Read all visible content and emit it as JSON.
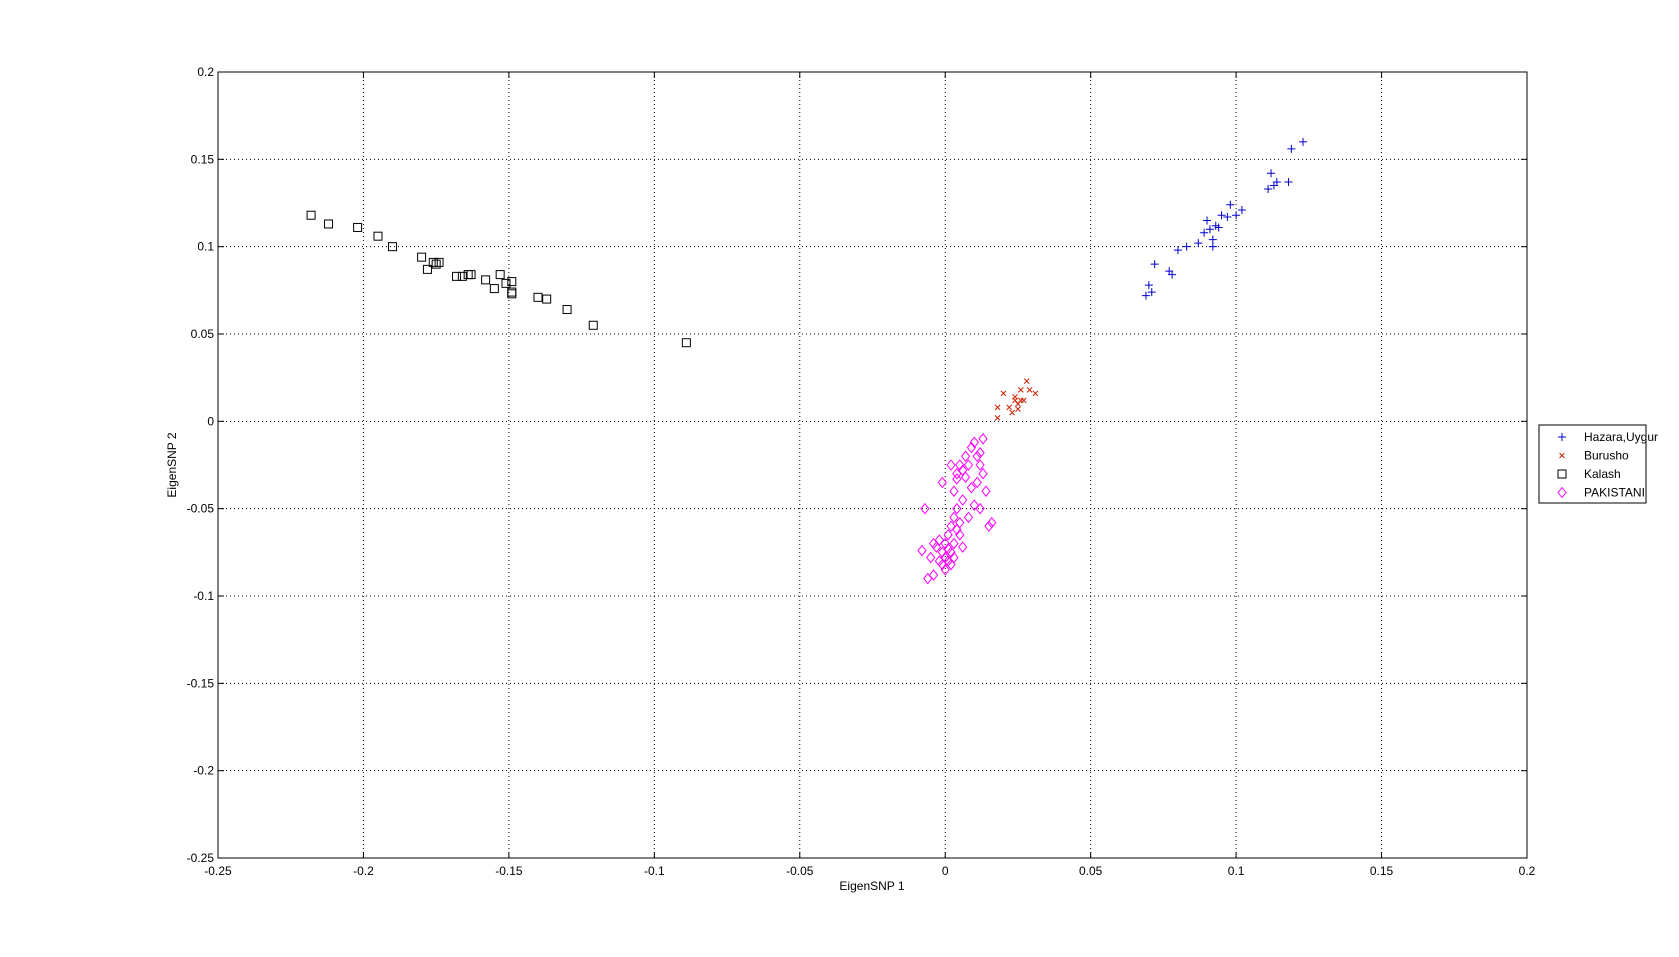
{
  "chart_data": {
    "type": "scatter",
    "title": "",
    "xlabel": "EigenSNP 1",
    "ylabel": "EigenSNP 2",
    "xlim": [
      -0.25,
      0.2
    ],
    "ylim": [
      -0.25,
      0.2
    ],
    "xticks": [
      -0.25,
      -0.2,
      -0.15,
      -0.1,
      -0.05,
      0,
      0.05,
      0.1,
      0.15,
      0.2
    ],
    "xtick_labels": [
      "-0.25",
      "-0.2",
      "-0.15",
      "-0.1",
      "-0.05",
      "0",
      "0.05",
      "0.1",
      "0.15",
      "0.2"
    ],
    "yticks": [
      -0.25,
      -0.2,
      -0.15,
      -0.1,
      -0.05,
      0,
      0.05,
      0.1,
      0.15,
      0.2
    ],
    "ytick_labels": [
      "-0.25",
      "-0.2",
      "-0.15",
      "-0.1",
      "-0.05",
      "0",
      "0.05",
      "0.1",
      "0.15",
      "0.2"
    ],
    "grid": true,
    "legend_position": "right",
    "series": [
      {
        "name": "Hazara,Uygur",
        "marker": "plus",
        "color": "#0000cc",
        "x": [
          0.069,
          0.07,
          0.071,
          0.072,
          0.077,
          0.078,
          0.08,
          0.083,
          0.087,
          0.089,
          0.09,
          0.091,
          0.092,
          0.092,
          0.093,
          0.094,
          0.095,
          0.097,
          0.098,
          0.1,
          0.102,
          0.111,
          0.112,
          0.113,
          0.114,
          0.118,
          0.119,
          0.123
        ],
        "y": [
          0.072,
          0.078,
          0.074,
          0.09,
          0.086,
          0.084,
          0.098,
          0.1,
          0.102,
          0.108,
          0.115,
          0.11,
          0.104,
          0.1,
          0.112,
          0.111,
          0.118,
          0.117,
          0.124,
          0.118,
          0.121,
          0.133,
          0.142,
          0.135,
          0.137,
          0.137,
          0.156,
          0.16
        ]
      },
      {
        "name": "Burusho",
        "marker": "x",
        "color": "#cc2200",
        "x": [
          0.018,
          0.018,
          0.02,
          0.022,
          0.023,
          0.024,
          0.024,
          0.025,
          0.025,
          0.026,
          0.026,
          0.027,
          0.028,
          0.029,
          0.031
        ],
        "y": [
          0.002,
          0.008,
          0.016,
          0.008,
          0.005,
          0.012,
          0.014,
          0.007,
          0.01,
          0.012,
          0.018,
          0.012,
          0.023,
          0.018,
          0.016
        ]
      },
      {
        "name": "Kalash",
        "marker": "square",
        "color": "#000000",
        "x": [
          -0.218,
          -0.212,
          -0.202,
          -0.195,
          -0.19,
          -0.18,
          -0.178,
          -0.176,
          -0.175,
          -0.174,
          -0.168,
          -0.166,
          -0.164,
          -0.163,
          -0.158,
          -0.155,
          -0.153,
          -0.151,
          -0.149,
          -0.149,
          -0.149,
          -0.14,
          -0.137,
          -0.13,
          -0.121,
          -0.089
        ],
        "y": [
          0.118,
          0.113,
          0.111,
          0.106,
          0.1,
          0.094,
          0.087,
          0.091,
          0.09,
          0.091,
          0.083,
          0.083,
          0.084,
          0.084,
          0.081,
          0.076,
          0.084,
          0.079,
          0.08,
          0.074,
          0.073,
          0.071,
          0.07,
          0.064,
          0.055,
          0.045
        ]
      },
      {
        "name": "PAKISTANI",
        "marker": "diamond",
        "color": "#ff00ff",
        "x": [
          -0.006,
          -0.005,
          -0.004,
          -0.003,
          -0.002,
          -0.002,
          -0.001,
          -0.001,
          0.0,
          0.0,
          0.0,
          0.001,
          0.001,
          0.001,
          0.002,
          0.002,
          0.002,
          0.003,
          0.003,
          0.003,
          0.004,
          0.004,
          0.004,
          0.005,
          0.005,
          0.006,
          0.006,
          0.007,
          0.007,
          0.008,
          0.008,
          0.009,
          0.009,
          0.01,
          0.01,
          0.011,
          0.011,
          0.012,
          0.012,
          0.012,
          0.013,
          0.013,
          0.014,
          0.015,
          0.016,
          -0.008,
          -0.007,
          -0.004,
          -0.001,
          0.003,
          0.005,
          0.002,
          0.0,
          0.004,
          0.006
        ],
        "y": [
          -0.09,
          -0.078,
          -0.088,
          -0.072,
          -0.068,
          -0.08,
          -0.075,
          -0.082,
          -0.07,
          -0.078,
          -0.085,
          -0.073,
          -0.065,
          -0.08,
          -0.06,
          -0.075,
          -0.082,
          -0.055,
          -0.07,
          -0.078,
          -0.05,
          -0.03,
          -0.062,
          -0.025,
          -0.058,
          -0.028,
          -0.045,
          -0.02,
          -0.032,
          -0.055,
          -0.025,
          -0.015,
          -0.038,
          -0.012,
          -0.048,
          -0.02,
          -0.035,
          -0.025,
          -0.05,
          -0.018,
          -0.03,
          -0.01,
          -0.04,
          -0.06,
          -0.058,
          -0.074,
          -0.05,
          -0.07,
          -0.035,
          -0.04,
          -0.065,
          -0.025,
          -0.078,
          -0.033,
          -0.072
        ]
      }
    ]
  }
}
